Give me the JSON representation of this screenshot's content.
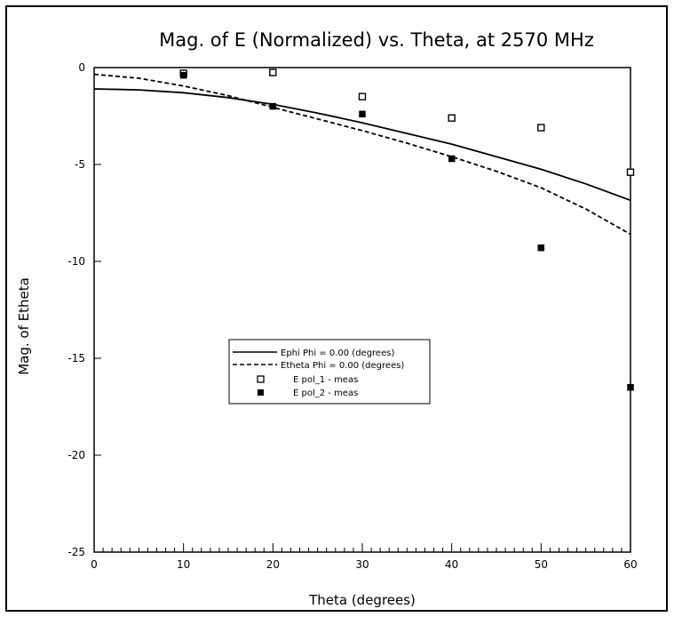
{
  "chart_data": {
    "type": "line",
    "title": "Mag. of E (Normalized) vs. Theta, at 2570 MHz",
    "xlabel": "Theta (degrees)",
    "ylabel": "Mag. of Etheta",
    "xlim": [
      0,
      60
    ],
    "ylim": [
      -25,
      0
    ],
    "xticks": [
      0,
      10,
      20,
      30,
      40,
      50,
      60
    ],
    "yticks": [
      0,
      -5,
      -10,
      -15,
      -20,
      -25
    ],
    "xtick_labels": [
      "0",
      "10",
      "20",
      "30",
      "40",
      "50",
      "60"
    ],
    "ytick_labels": [
      "0",
      "-5",
      "-10",
      "-15",
      "-20",
      "-25"
    ],
    "grid": false,
    "legend_position": "center",
    "series": [
      {
        "name": "Ephi Phi =   0.00 (degrees)",
        "kind": "line",
        "style": "solid",
        "x": [
          0,
          5,
          10,
          15,
          20,
          25,
          30,
          35,
          40,
          45,
          50,
          55,
          60
        ],
        "y": [
          -1.1,
          -1.15,
          -1.3,
          -1.55,
          -1.9,
          -2.35,
          -2.85,
          -3.4,
          -3.95,
          -4.6,
          -5.25,
          -6.0,
          -6.85
        ]
      },
      {
        "name": "Etheta Phi =   0.00 (degrees)",
        "kind": "line",
        "style": "dashed",
        "x": [
          0,
          5,
          10,
          15,
          20,
          25,
          30,
          35,
          40,
          45,
          50,
          55,
          60
        ],
        "y": [
          -0.35,
          -0.55,
          -0.95,
          -1.45,
          -2.05,
          -2.65,
          -3.25,
          -3.9,
          -4.6,
          -5.35,
          -6.2,
          -7.3,
          -8.6
        ]
      },
      {
        "name": "E pol_1 - meas",
        "kind": "scatter",
        "marker": "open-square",
        "x": [
          10,
          20,
          30,
          40,
          50,
          60
        ],
        "y": [
          -0.3,
          -0.25,
          -1.5,
          -2.6,
          -3.1,
          -5.4
        ]
      },
      {
        "name": "E pol_2 - meas",
        "kind": "scatter",
        "marker": "filled-square",
        "x": [
          10,
          20,
          30,
          40,
          50,
          60
        ],
        "y": [
          -0.4,
          -2.0,
          -2.4,
          -4.7,
          -9.3,
          -16.5
        ]
      }
    ]
  }
}
